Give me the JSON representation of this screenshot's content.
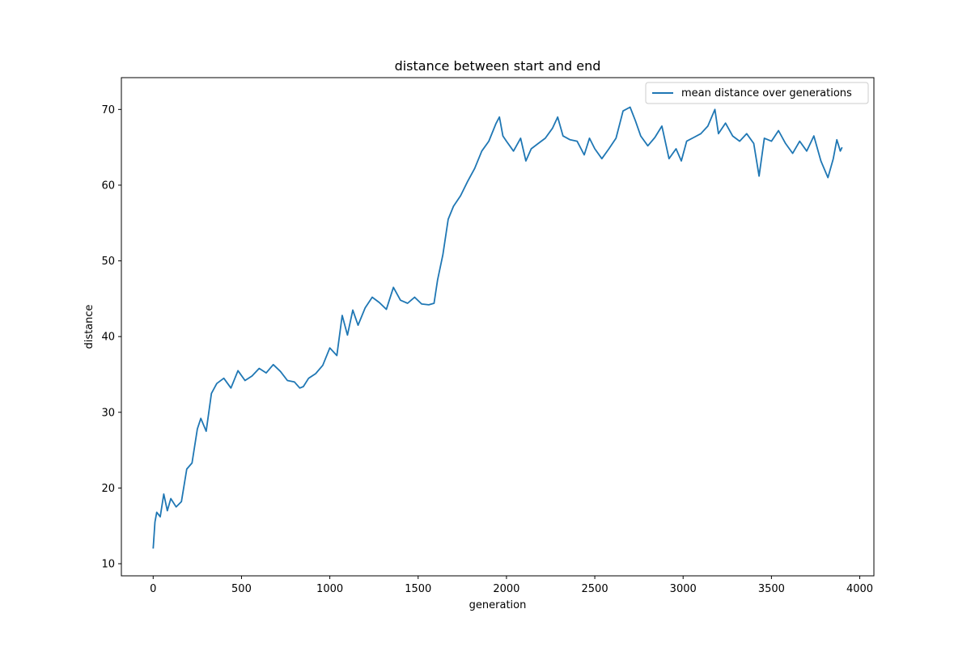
{
  "chart_data": {
    "type": "line",
    "title": "distance between start and end",
    "xlabel": "generation",
    "ylabel": "distance",
    "xlim": [
      -180,
      4080
    ],
    "ylim": [
      8.4,
      74.2
    ],
    "xticks": [
      0,
      500,
      1000,
      1500,
      2000,
      2500,
      3000,
      3500,
      4000
    ],
    "yticks": [
      10,
      20,
      30,
      40,
      50,
      60,
      70
    ],
    "grid": false,
    "legend_position": "top-right",
    "series": [
      {
        "name": "mean distance over generations",
        "color": "#1f77b4",
        "x": [
          0,
          10,
          20,
          40,
          60,
          80,
          100,
          130,
          160,
          190,
          220,
          250,
          270,
          300,
          330,
          360,
          400,
          440,
          480,
          520,
          560,
          600,
          640,
          680,
          720,
          760,
          800,
          830,
          850,
          880,
          920,
          960,
          1000,
          1040,
          1070,
          1100,
          1130,
          1160,
          1200,
          1240,
          1280,
          1320,
          1360,
          1400,
          1440,
          1480,
          1520,
          1560,
          1590,
          1610,
          1640,
          1670,
          1700,
          1740,
          1780,
          1820,
          1860,
          1900,
          1940,
          1960,
          1980,
          2000,
          2040,
          2080,
          2110,
          2140,
          2180,
          2220,
          2260,
          2290,
          2320,
          2360,
          2400,
          2440,
          2470,
          2500,
          2540,
          2580,
          2620,
          2660,
          2700,
          2730,
          2760,
          2800,
          2840,
          2880,
          2920,
          2960,
          2990,
          3020,
          3060,
          3100,
          3140,
          3180,
          3200,
          3240,
          3280,
          3320,
          3360,
          3400,
          3430,
          3460,
          3500,
          3540,
          3580,
          3620,
          3660,
          3700,
          3740,
          3780,
          3820,
          3850,
          3870,
          3890,
          3900
        ],
        "y": [
          12,
          15.5,
          16.8,
          16.2,
          19.2,
          17,
          18.6,
          17.5,
          18.2,
          22.5,
          23.3,
          27.8,
          29.2,
          27.5,
          32.5,
          33.8,
          34.5,
          33.2,
          35.5,
          34.2,
          34.8,
          35.8,
          35.2,
          36.3,
          35.4,
          34.2,
          34,
          33.2,
          33.4,
          34.5,
          35.1,
          36.2,
          38.5,
          37.5,
          42.8,
          40.2,
          43.5,
          41.5,
          43.8,
          45.2,
          44.5,
          43.6,
          46.5,
          44.8,
          44.4,
          45.2,
          44.3,
          44.2,
          44.4,
          47.5,
          50.8,
          55.5,
          57.2,
          58.6,
          60.5,
          62.2,
          64.5,
          65.8,
          68.1,
          69,
          66.5,
          65.8,
          64.5,
          66.2,
          63.2,
          64.8,
          65.5,
          66.2,
          67.5,
          69,
          66.5,
          66,
          65.8,
          64,
          66.2,
          64.8,
          63.5,
          64.8,
          66.2,
          69.8,
          70.3,
          68.5,
          66.5,
          65.2,
          66.3,
          67.8,
          63.5,
          64.8,
          63.2,
          65.8,
          66.3,
          66.8,
          67.8,
          70,
          66.8,
          68.2,
          66.5,
          65.8,
          66.8,
          65.5,
          61.2,
          66.2,
          65.8,
          67.2,
          65.5,
          64.2,
          65.8,
          64.5,
          66.5,
          63.2,
          61,
          63.5,
          66,
          64.5,
          65
        ]
      }
    ]
  }
}
